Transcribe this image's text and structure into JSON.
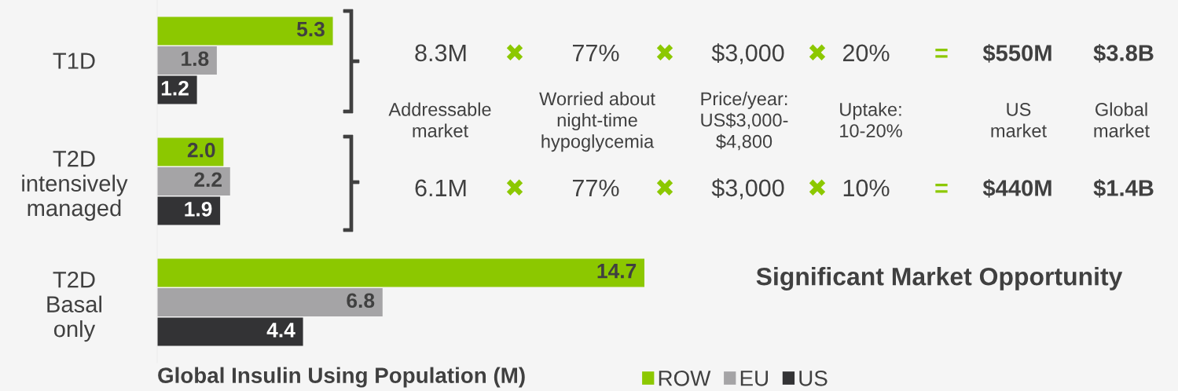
{
  "chart_data": [
    {
      "type": "bar",
      "orientation": "horizontal",
      "categories": [
        "T1D",
        "T2D\nintensively\nmanaged",
        "T2D\nBasal\nonly"
      ],
      "series": [
        {
          "name": "ROW",
          "color": "#8cc800",
          "values": [
            5.3,
            2.0,
            14.7
          ],
          "value_labels": [
            "5.3",
            "2.0",
            "14.7"
          ]
        },
        {
          "name": "EU",
          "color": "#a5a4a6",
          "values": [
            1.8,
            2.2,
            6.8
          ],
          "value_labels": [
            "1.8",
            "2.2",
            "6.8"
          ]
        },
        {
          "name": "US",
          "color": "#333335",
          "values": [
            1.2,
            1.9,
            4.4
          ],
          "value_labels": [
            "1.2",
            "1.9",
            "4.4"
          ]
        }
      ],
      "xlabel": "Global Insulin Using Population (M)",
      "legend": "bottom",
      "tick_labels": "y"
    },
    {
      "type": "other",
      "title": "Significant Market Opportunity",
      "annotations": [
        "8.3M",
        "✖",
        "77%",
        "✖",
        "$3,000",
        "✖",
        "20%",
        "=",
        "$550M",
        "$3.8B",
        "Addressable\nmarket",
        "Worried about\nnight-time\nhypoglycemia",
        "Price/year:\nUS$3,000-\n$4,800",
        "Uptake:\n10-20%",
        "US\nmarket",
        "Global\nmarket",
        "6.1M",
        "✖",
        "77%",
        "✖",
        "$3,000",
        "✖",
        "10%",
        "=",
        "$440M",
        "$1.4B"
      ]
    }
  ]
}
